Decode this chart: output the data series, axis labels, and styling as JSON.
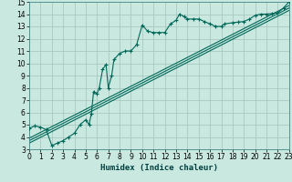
{
  "title": "",
  "xlabel": "Humidex (Indice chaleur)",
  "xlim": [
    0,
    23
  ],
  "ylim": [
    3,
    15
  ],
  "xticks": [
    0,
    1,
    2,
    3,
    4,
    5,
    6,
    7,
    8,
    9,
    10,
    11,
    12,
    13,
    14,
    15,
    16,
    17,
    18,
    19,
    20,
    21,
    22,
    23
  ],
  "yticks": [
    3,
    4,
    5,
    6,
    7,
    8,
    9,
    10,
    11,
    12,
    13,
    14,
    15
  ],
  "bg_color": "#c8e8e0",
  "grid_color": "#a8c8c0",
  "line_color": "#006858",
  "humidex_data": [
    [
      0,
      4.7
    ],
    [
      0.5,
      4.9
    ],
    [
      1,
      4.8
    ],
    [
      1.5,
      4.6
    ],
    [
      2,
      3.3
    ],
    [
      2.5,
      3.5
    ],
    [
      3,
      3.7
    ],
    [
      3.5,
      4.0
    ],
    [
      4,
      4.3
    ],
    [
      4.5,
      5.0
    ],
    [
      5,
      5.4
    ],
    [
      5.3,
      5.0
    ],
    [
      5.5,
      5.9
    ],
    [
      5.7,
      7.7
    ],
    [
      6,
      7.5
    ],
    [
      6.2,
      8.0
    ],
    [
      6.5,
      9.5
    ],
    [
      6.8,
      9.9
    ],
    [
      7,
      8.0
    ],
    [
      7.3,
      9.0
    ],
    [
      7.5,
      10.3
    ],
    [
      8,
      10.8
    ],
    [
      8.5,
      11.0
    ],
    [
      9,
      11.0
    ],
    [
      9.5,
      11.5
    ],
    [
      10,
      13.1
    ],
    [
      10.5,
      12.6
    ],
    [
      11,
      12.5
    ],
    [
      11.5,
      12.5
    ],
    [
      12,
      12.5
    ],
    [
      12.5,
      13.2
    ],
    [
      13,
      13.5
    ],
    [
      13.3,
      14.0
    ],
    [
      13.7,
      13.8
    ],
    [
      14,
      13.6
    ],
    [
      14.5,
      13.6
    ],
    [
      15,
      13.6
    ],
    [
      15.5,
      13.4
    ],
    [
      16,
      13.2
    ],
    [
      16.5,
      13.0
    ],
    [
      17,
      13.0
    ],
    [
      17.3,
      13.2
    ],
    [
      18,
      13.3
    ],
    [
      18.5,
      13.35
    ],
    [
      19,
      13.4
    ],
    [
      19.5,
      13.6
    ],
    [
      20,
      13.9
    ],
    [
      20.5,
      14.0
    ],
    [
      21,
      14.0
    ],
    [
      21.5,
      14.05
    ],
    [
      22,
      14.1
    ],
    [
      22.5,
      14.5
    ],
    [
      23,
      15.0
    ]
  ],
  "ref_lines": [
    {
      "x": [
        0,
        23
      ],
      "y": [
        3.5,
        14.3
      ]
    },
    {
      "x": [
        0,
        23
      ],
      "y": [
        3.7,
        14.5
      ]
    },
    {
      "x": [
        0,
        23
      ],
      "y": [
        3.9,
        14.7
      ]
    }
  ]
}
